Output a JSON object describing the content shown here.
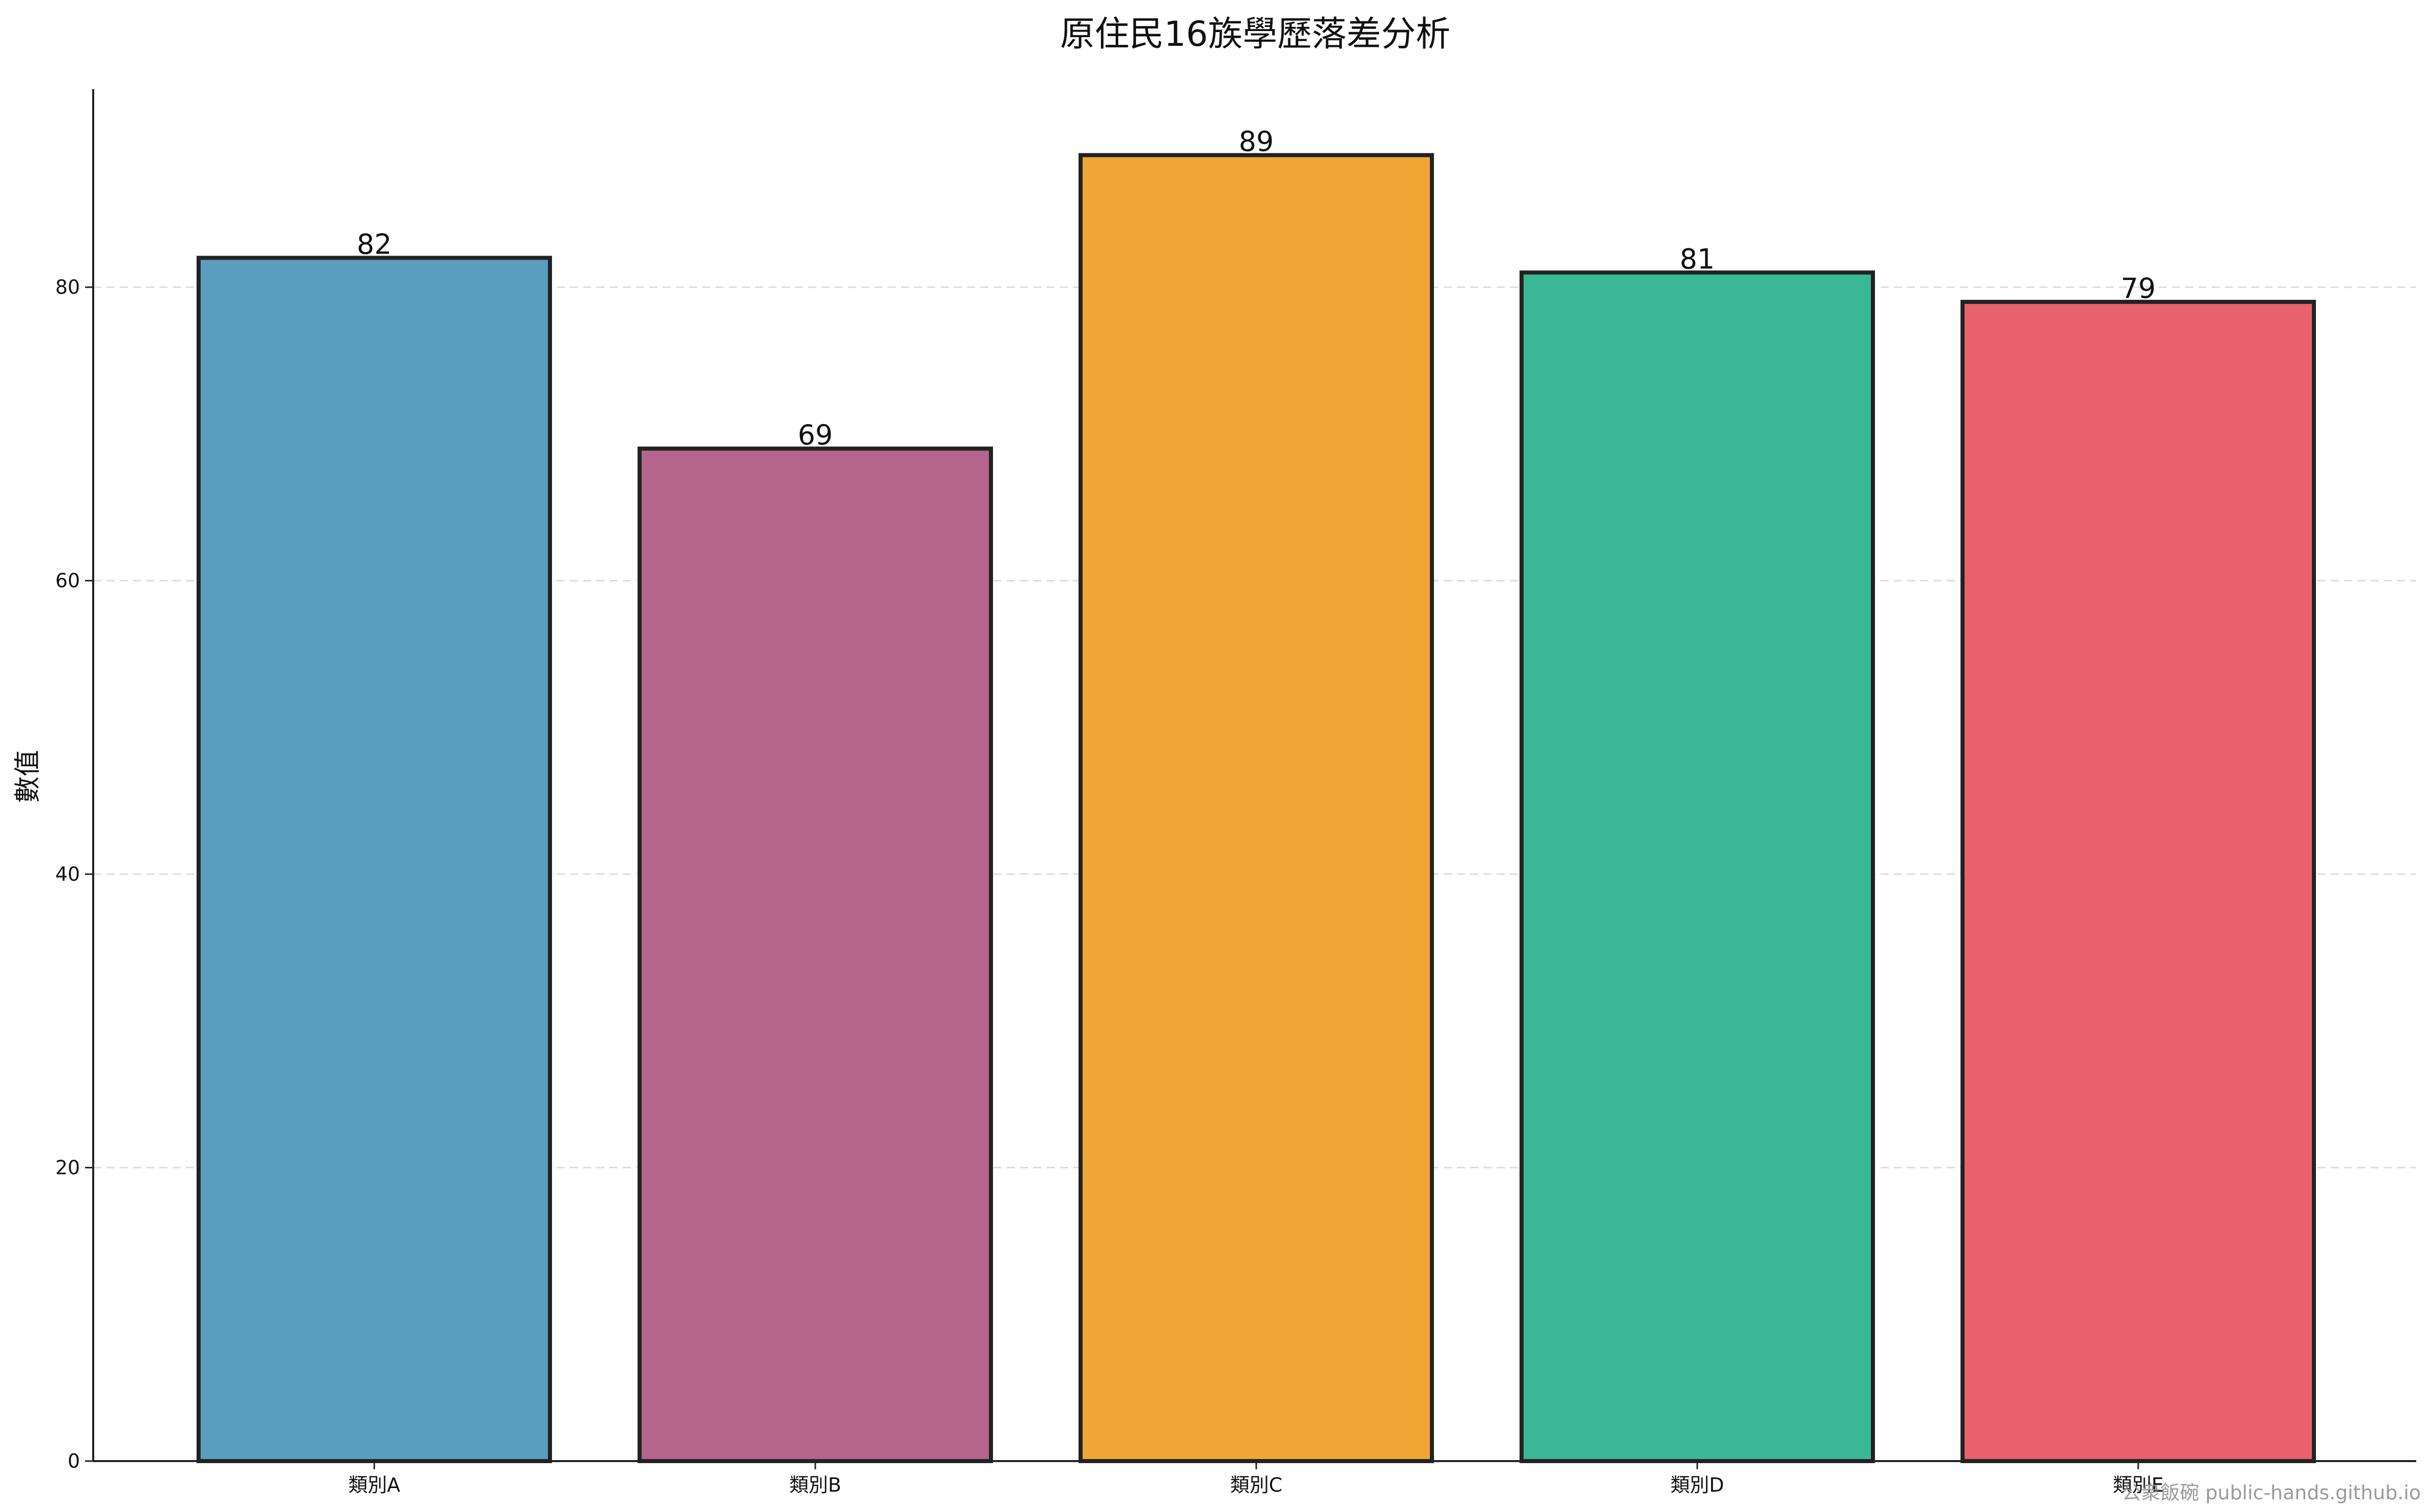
{
  "chart_data": {
    "type": "bar",
    "title": "原住民16族學歷落差分析",
    "xlabel": "",
    "ylabel": "數值",
    "categories": [
      "類別A",
      "類別B",
      "類別C",
      "類別D",
      "類別E"
    ],
    "values": [
      82,
      69,
      89,
      81,
      79
    ],
    "colors": [
      "#5A9DBE",
      "#B5648C",
      "#F0A535",
      "#3AB896",
      "#E9616B"
    ],
    "edge_color": "#222222",
    "ylim": [
      0,
      93.5
    ],
    "yticks": [
      0,
      20,
      40,
      60,
      80
    ],
    "grid": "y-dashed",
    "legend": "none"
  },
  "watermark": "公衆飯碗 public-hands.github.io"
}
